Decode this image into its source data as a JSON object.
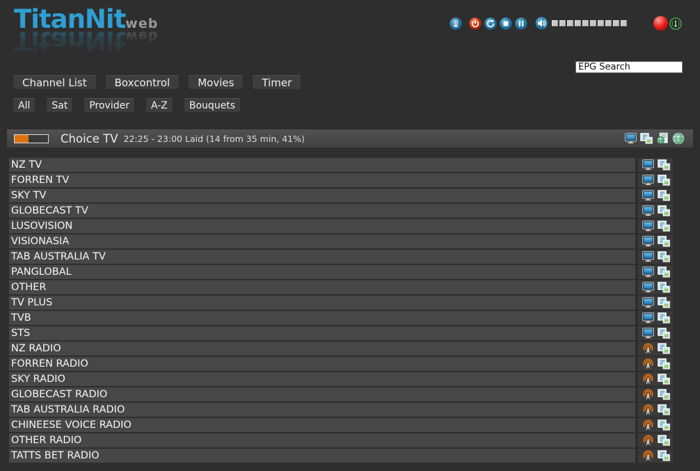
{
  "logo": {
    "primary": "TitanNit",
    "secondary": "web"
  },
  "colors": {
    "background": "#2e2e2e",
    "row": "#474747",
    "row_icon_cell": "#3a3a3a",
    "button": "#3d3d3d",
    "logo_blue": "#2f9fd3",
    "progress_orange": "#e0720d",
    "control_blue": "#2a7aa5",
    "power_red": "#d23a14",
    "record_red": "#ee2020",
    "antenna_green": "#4ea34e"
  },
  "top_controls": {
    "playback_buttons": [
      {
        "name": "remote-button",
        "icon": "remote-icon"
      },
      {
        "name": "power-button",
        "icon": "power-icon"
      },
      {
        "name": "reboot-button",
        "icon": "reboot-icon"
      },
      {
        "name": "stop-button",
        "icon": "stop-icon"
      },
      {
        "name": "pause-button",
        "icon": "pause-icon"
      }
    ],
    "volume": {
      "mute_icon": "speaker-icon",
      "steps": 10
    },
    "record_indicator": {
      "icon": "record-ball-icon"
    },
    "signal_indicator": {
      "icon": "antenna-icon"
    }
  },
  "search": {
    "value": "EPG Search"
  },
  "nav_tabs": [
    "Channel List",
    "Boxcontrol",
    "Movies",
    "Timer"
  ],
  "filter_tabs": [
    "All",
    "Sat",
    "Provider",
    "A-Z",
    "Bouquets"
  ],
  "now_playing": {
    "channel": "Choice TV",
    "details": "22:25 - 23:00 Laid (14 from 35 min, 41%)",
    "progress_percent": 41,
    "actions": [
      {
        "name": "watch-tv-button",
        "icon": "tv-icon"
      },
      {
        "name": "pip-button",
        "icon": "pip-icon"
      },
      {
        "name": "epg-button",
        "icon": "epg-icon"
      },
      {
        "name": "web-stream-button",
        "icon": "globe-icon"
      }
    ]
  },
  "channels": [
    {
      "name": "NZ TV",
      "type": "tv"
    },
    {
      "name": "FORREN TV",
      "type": "tv"
    },
    {
      "name": "SKY TV",
      "type": "tv"
    },
    {
      "name": "GLOBECAST TV",
      "type": "tv"
    },
    {
      "name": "LUSOVISION",
      "type": "tv"
    },
    {
      "name": "VISIONASIA",
      "type": "tv"
    },
    {
      "name": "TAB AUSTRALIA TV",
      "type": "tv"
    },
    {
      "name": "PANGLOBAL",
      "type": "tv"
    },
    {
      "name": "OTHER",
      "type": "tv"
    },
    {
      "name": "TV PLUS",
      "type": "tv"
    },
    {
      "name": "TVB",
      "type": "tv"
    },
    {
      "name": "STS",
      "type": "tv"
    },
    {
      "name": "NZ RADIO",
      "type": "radio"
    },
    {
      "name": "FORREN RADIO",
      "type": "radio"
    },
    {
      "name": "SKY RADIO",
      "type": "radio"
    },
    {
      "name": "GLOBECAST RADIO",
      "type": "radio"
    },
    {
      "name": "TAB AUSTRALIA RADIO",
      "type": "radio"
    },
    {
      "name": "CHINEESE VOICE RADIO",
      "type": "radio"
    },
    {
      "name": "OTHER RADIO",
      "type": "radio"
    },
    {
      "name": "TATTS BET RADIO",
      "type": "radio"
    }
  ]
}
